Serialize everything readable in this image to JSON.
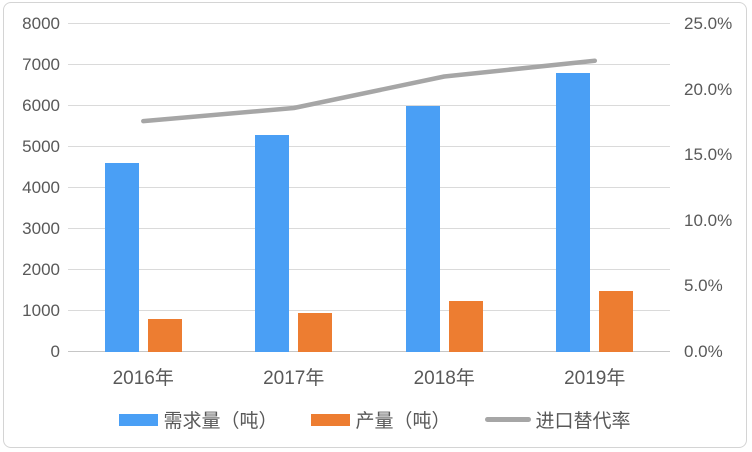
{
  "chart_data": {
    "type": "bar",
    "subtype": "combo-bar-line-dual-axis",
    "title": "",
    "categories": [
      "2016年",
      "2017年",
      "2018年",
      "2019年"
    ],
    "series": [
      {
        "id": "demand",
        "name": "需求量（吨）",
        "type": "bar",
        "axis": "left",
        "color": "#4a9ff5",
        "values": [
          4600,
          5300,
          6000,
          6800
        ]
      },
      {
        "id": "production",
        "name": "产量（吨）",
        "type": "bar",
        "axis": "left",
        "color": "#ed7d31",
        "values": [
          800,
          950,
          1250,
          1480
        ]
      },
      {
        "id": "import-substitution-rate",
        "name": "进口替代率",
        "type": "line",
        "axis": "right",
        "color": "#a6a6a6",
        "values": [
          17.6,
          18.6,
          21.0,
          22.2
        ],
        "unit": "%"
      }
    ],
    "left_axis": {
      "min": 0,
      "max": 8000,
      "step": 1000,
      "ticks": [
        "0",
        "1000",
        "2000",
        "3000",
        "4000",
        "5000",
        "6000",
        "7000",
        "8000"
      ]
    },
    "right_axis": {
      "min": 0,
      "max": 25,
      "step": 5,
      "ticks": [
        "0.0%",
        "5.0%",
        "10.0%",
        "15.0%",
        "20.0%",
        "25.0%"
      ]
    },
    "grid": true,
    "legend_position": "bottom",
    "colors": {
      "grid": "#dadada",
      "axis_line": "#c6c6c6",
      "text": "#595959",
      "frame_border": "#d4d4d4",
      "background": "#ffffff"
    }
  }
}
